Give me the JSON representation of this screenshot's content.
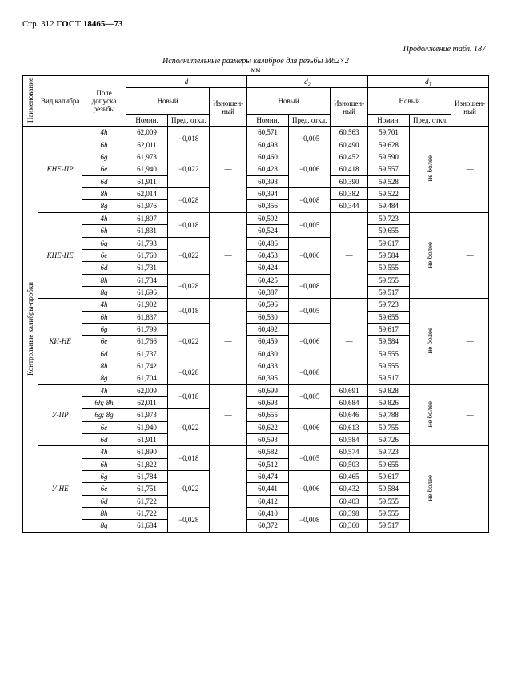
{
  "page_label": "Стр. 312",
  "standard": "ГОСТ 18465—73",
  "continuation": "Продолжение табл. 187",
  "table_title": "Исполнительные размеры калибров для резьбы М62×2",
  "unit": "мм",
  "hdr": {
    "naimen": "Наимено­вание",
    "vid": "Вид\nкалибра",
    "tol": "Поле допуска\nрезьбы",
    "d": "d",
    "d2": "d₂",
    "d1": "d₁",
    "novyy": "Новый",
    "nomin": "Номин.",
    "pred": "Пред.\nоткл.",
    "izn": "Изношен-\nный",
    "ne_bolee": "не более"
  },
  "side_label": "Контрольные калибры-пробки",
  "groups": [
    {
      "label": "КНЕ-ПР",
      "rows": [
        {
          "t": "4h",
          "dN": "62,009",
          "dP": "−0,018",
          "d2N": "60,571",
          "d2P": "−0,005",
          "d2I": "60,563",
          "d1N": "59,701"
        },
        {
          "t": "6h",
          "dN": "62,011",
          "dP": "",
          "d2N": "60,498",
          "d2P": "",
          "d2I": "60,490",
          "d1N": "59,628"
        },
        {
          "t": "6g",
          "dN": "61,973",
          "dP": "−0,022",
          "d2N": "60,460",
          "d2P": "−0,006",
          "d2I": "60,452",
          "d1N": "59,590"
        },
        {
          "t": "6e",
          "dN": "61,940",
          "dP": "",
          "d2N": "60,428",
          "d2P": "",
          "d2I": "60,418",
          "d1N": "59,557"
        },
        {
          "t": "6d",
          "dN": "61,911",
          "dP": "",
          "d2N": "60,398",
          "d2P": "",
          "d2I": "60,390",
          "d1N": "59,528"
        },
        {
          "t": "8h",
          "dN": "62,014",
          "dP": "−0,028",
          "d2N": "60,394",
          "d2P": "−0,008",
          "d2I": "60,382",
          "d1N": "59,522"
        },
        {
          "t": "8g",
          "dN": "61,976",
          "dP": "",
          "d2N": "60,356",
          "d2P": "",
          "d2I": "60,344",
          "d1N": "59,484"
        }
      ],
      "dI_dash": true,
      "d1P_neb": true,
      "d1I_dash": true
    },
    {
      "label": "КНЕ-НЕ",
      "rows": [
        {
          "t": "4h",
          "dN": "61,897",
          "dP": "−0,018",
          "d2N": "60,592",
          "d2P": "−0,005",
          "d1N": "59,723"
        },
        {
          "t": "6h",
          "dN": "61,831",
          "dP": "",
          "d2N": "60,524",
          "d2P": "",
          "d1N": "59,655"
        },
        {
          "t": "6g",
          "dN": "61,793",
          "dP": "−0,022",
          "d2N": "60,486",
          "d2P": "−0,006",
          "d1N": "59,617"
        },
        {
          "t": "6e",
          "dN": "61,760",
          "dP": "",
          "d2N": "60,453",
          "d2P": "",
          "d1N": "59,584"
        },
        {
          "t": "6d",
          "dN": "61,731",
          "dP": "",
          "d2N": "60,424",
          "d2P": "",
          "d1N": "59,555"
        },
        {
          "t": "8h",
          "dN": "61,734",
          "dP": "−0,028",
          "d2N": "60,425",
          "d2P": "−0,008",
          "d1N": "59,555"
        },
        {
          "t": "8g",
          "dN": "61,696",
          "dP": "",
          "d2N": "60,387",
          "d2P": "",
          "d1N": "59,517"
        }
      ],
      "dI_dash": true,
      "d2I_dash": true,
      "d1P_neb": true,
      "d1I_dash": true
    },
    {
      "label": "КИ-НЕ",
      "rows": [
        {
          "t": "4h",
          "dN": "61,902",
          "dP": "−0,018",
          "d2N": "60,596",
          "d2P": "−0,005",
          "d1N": "59,723"
        },
        {
          "t": "6h",
          "dN": "61,837",
          "dP": "",
          "d2N": "60,530",
          "d2P": "",
          "d1N": "59,655"
        },
        {
          "t": "6g",
          "dN": "61,799",
          "dP": "−0,022",
          "d2N": "60,492",
          "d2P": "−0,006",
          "d1N": "59,617"
        },
        {
          "t": "6e",
          "dN": "61,766",
          "dP": "",
          "d2N": "60,459",
          "d2P": "",
          "d1N": "59,584"
        },
        {
          "t": "6d",
          "dN": "61,737",
          "dP": "",
          "d2N": "60,430",
          "d2P": "",
          "d1N": "59,555"
        },
        {
          "t": "8h",
          "dN": "61,742",
          "dP": "−0,028",
          "d2N": "60,433",
          "d2P": "−0,008",
          "d1N": "59,555"
        },
        {
          "t": "8g",
          "dN": "61,704",
          "dP": "",
          "d2N": "60,395",
          "d2P": "",
          "d1N": "59,517"
        }
      ],
      "dI_dash": true,
      "d2I_dash": true,
      "d1P_neb": true,
      "d1I_dash": true
    },
    {
      "label": "У-ПР",
      "rows": [
        {
          "t": "4h",
          "dN": "62,009",
          "dP": "−0,018",
          "d2N": "60,699",
          "d2P": "−0,005",
          "d2I": "60,691",
          "d1N": "59,828"
        },
        {
          "t": "6h; 8h",
          "dN": "62,011",
          "dP": "",
          "d2N": "60,693",
          "d2P": "",
          "d2I": "60,684",
          "d1N": "59,826"
        },
        {
          "t": "6g; 8g",
          "dN": "61,973",
          "dP": "−0,022",
          "d2N": "60,655",
          "d2P": "−0,006",
          "d2I": "60,646",
          "d1N": "59,788"
        },
        {
          "t": "6e",
          "dN": "61,940",
          "dP": "",
          "d2N": "60,622",
          "d2P": "",
          "d2I": "60,613",
          "d1N": "59,755"
        },
        {
          "t": "6d",
          "dN": "61,911",
          "dP": "",
          "d2N": "60,593",
          "d2P": "",
          "d2I": "60,584",
          "d1N": "59,726"
        }
      ],
      "dI_dash": true,
      "d1P_neb": true,
      "d1I_dash": true
    },
    {
      "label": "У-НЕ",
      "rows": [
        {
          "t": "4h",
          "dN": "61,890",
          "dP": "−0,018",
          "d2N": "60,582",
          "d2P": "−0,005",
          "d2I": "60,574",
          "d1N": "59,723"
        },
        {
          "t": "6h",
          "dN": "61,822",
          "dP": "",
          "d2N": "60,512",
          "d2P": "",
          "d2I": "60,503",
          "d1N": "59,655"
        },
        {
          "t": "6g",
          "dN": "61,784",
          "dP": "−0,022",
          "d2N": "60,474",
          "d2P": "−0,006",
          "d2I": "60,465",
          "d1N": "59,617"
        },
        {
          "t": "6e",
          "dN": "61,751",
          "dP": "",
          "d2N": "60,441",
          "d2P": "",
          "d2I": "60,432",
          "d1N": "59,584"
        },
        {
          "t": "6d",
          "dN": "61,722",
          "dP": "",
          "d2N": "60,412",
          "d2P": "",
          "d2I": "60,403",
          "d1N": "59,555"
        },
        {
          "t": "8h",
          "dN": "61,722",
          "dP": "−0,028",
          "d2N": "60,410",
          "d2P": "−0,008",
          "d2I": "60,398",
          "d1N": "59,555"
        },
        {
          "t": "8g",
          "dN": "61,684",
          "dP": "",
          "d2N": "60,372",
          "d2P": "",
          "d2I": "60,360",
          "d1N": "59,517"
        }
      ],
      "dI_dash": true,
      "d1P_neb": true,
      "d1I_dash": true
    }
  ]
}
